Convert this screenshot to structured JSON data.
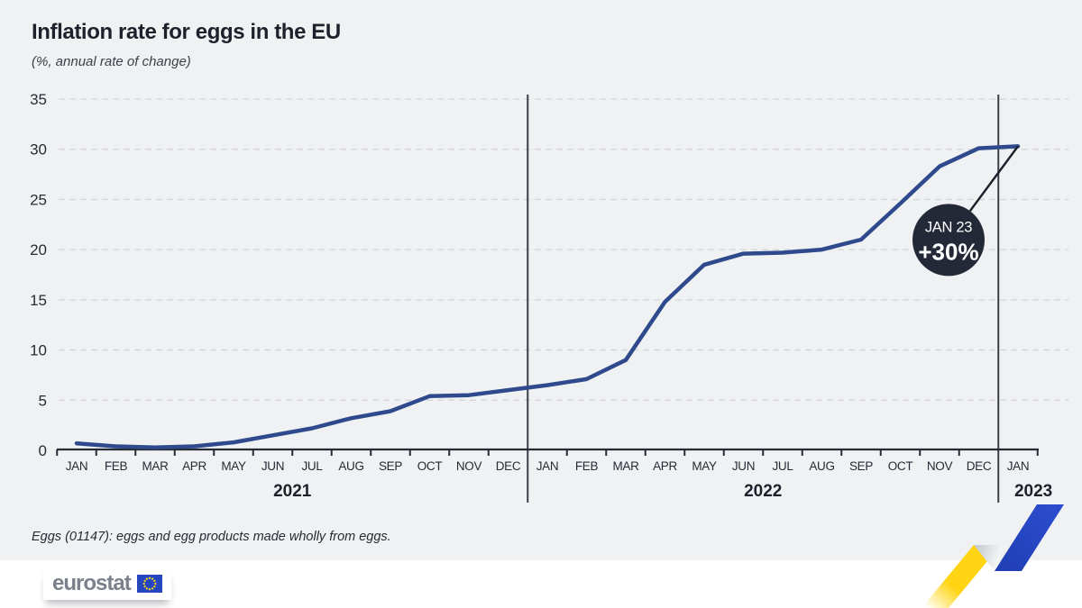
{
  "header": {
    "title": "Inflation rate for eggs in the EU",
    "subtitle": "(%, annual rate of change)"
  },
  "chart_data": {
    "type": "line",
    "title": "Inflation rate for eggs in the EU",
    "subtitle": "(%, annual rate of change)",
    "unit": "%",
    "categories": [
      "JAN",
      "FEB",
      "MAR",
      "APR",
      "MAY",
      "JUN",
      "JUL",
      "AUG",
      "SEP",
      "OCT",
      "NOV",
      "DEC",
      "JAN",
      "FEB",
      "MAR",
      "APR",
      "MAY",
      "JUN",
      "JUL",
      "AUG",
      "SEP",
      "OCT",
      "NOV",
      "DEC",
      "JAN"
    ],
    "year_groups": [
      {
        "label": "2021",
        "from": 0,
        "to": 11
      },
      {
        "label": "2022",
        "from": 12,
        "to": 23
      },
      {
        "label": "2023",
        "from": 24,
        "to": 24
      }
    ],
    "series": [
      {
        "name": "Inflation rate for eggs, EU",
        "values": [
          0.7,
          0.4,
          0.3,
          0.4,
          0.8,
          1.5,
          2.2,
          3.2,
          3.9,
          5.4,
          5.5,
          6.0,
          6.5,
          7.1,
          9.0,
          14.8,
          18.5,
          19.6,
          19.7,
          20.0,
          21.0,
          24.6,
          28.3,
          30.1,
          30.3
        ]
      }
    ],
    "ylim": [
      0,
      35
    ],
    "ytick_step": 5,
    "yticks": [
      0,
      5,
      10,
      15,
      20,
      25,
      30,
      35
    ],
    "grid": "horizontal-dashed",
    "legend": "none",
    "annotation": {
      "line1": "JAN 23",
      "line2": "+30%",
      "attached_to_index": 24
    },
    "colors": {
      "line": "#2f4a8c",
      "grid": "#d3d5d9",
      "axis": "#262b35",
      "separator": "#3a3f49",
      "annotation_bg": "#232936",
      "annotation_text": "#ffffff"
    }
  },
  "footnote": "Eggs (01147): eggs and egg products made wholly from eggs.",
  "footer": {
    "logo_text": "eurostat"
  },
  "decor": {
    "ribbon_yellow": "#ffd513",
    "ribbon_blue": "#2847c5",
    "flag_blue": "#2546be",
    "flag_star": "#ffd617"
  }
}
